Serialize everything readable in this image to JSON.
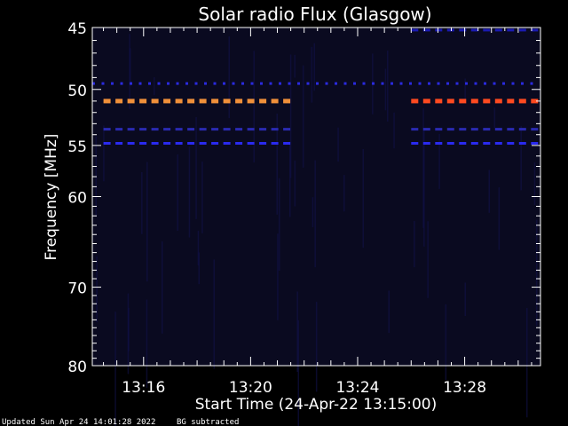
{
  "chart_data": {
    "type": "heatmap",
    "title": "Solar radio Flux (Glasgow)",
    "ylabel": "Frequency [MHz]",
    "xlabel": "Start Time (24-Apr-22 13:15:00)",
    "y_scale": "log",
    "xlim": [
      "13:14:05",
      "13:30:50"
    ],
    "ylim": [
      45,
      80
    ],
    "y_ticks": [
      {
        "value": 45,
        "label": "45"
      },
      {
        "value": 50,
        "label": "50"
      },
      {
        "value": 55,
        "label": "55"
      },
      {
        "value": 60,
        "label": "60"
      },
      {
        "value": 70,
        "label": "70"
      },
      {
        "value": 80,
        "label": "80"
      }
    ],
    "x_ticks": [
      {
        "value": "13:16",
        "label": "13:16"
      },
      {
        "value": "13:20",
        "label": "13:20"
      },
      {
        "value": "13:24",
        "label": "13:24"
      },
      {
        "value": "13:28",
        "label": "13:28"
      }
    ],
    "background_color": "#0a0a20",
    "bands": [
      {
        "freq": 49.5,
        "start": "13:14:05",
        "end": "13:30:50",
        "color": "#2a2ae0"
      },
      {
        "freq": 51.0,
        "start": "13:14:30",
        "end": "13:21:50",
        "color": "#f0903a"
      },
      {
        "freq": 51.0,
        "start": "13:26:00",
        "end": "13:30:50",
        "color": "#ff4a20"
      },
      {
        "freq": 53.5,
        "start": "13:14:30",
        "end": "13:21:50",
        "color": "#2a2ab0"
      },
      {
        "freq": 53.5,
        "start": "13:26:00",
        "end": "13:30:50",
        "color": "#2a2ab0"
      },
      {
        "freq": 54.8,
        "start": "13:14:30",
        "end": "13:21:50",
        "color": "#2a2af0"
      },
      {
        "freq": 54.8,
        "start": "13:26:00",
        "end": "13:30:50",
        "color": "#2a2af0"
      },
      {
        "freq": 45.2,
        "start": "13:26:00",
        "end": "13:30:50",
        "color": "#1a1ab0"
      }
    ]
  },
  "footer": {
    "updated": "Updated Sun Apr 24 14:01:28 2022",
    "note": "BG subtracted"
  }
}
